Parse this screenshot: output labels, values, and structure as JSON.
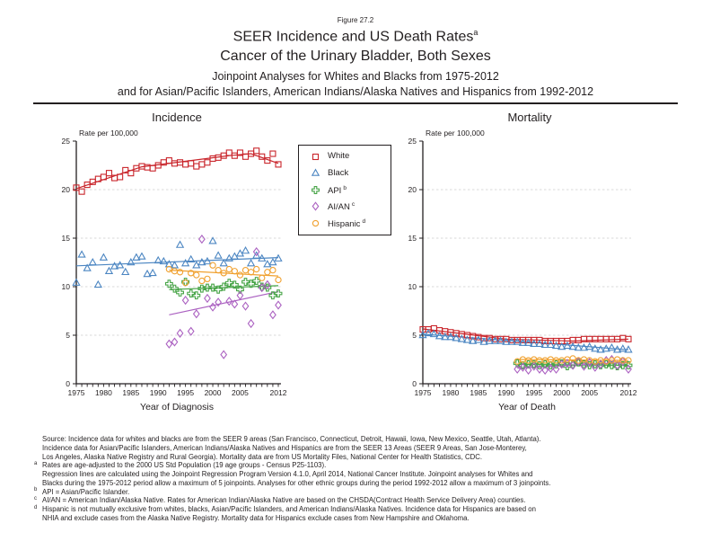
{
  "figure": {
    "label": "Figure 27.2",
    "title_line1": "SEER Incidence and US Death Rates",
    "title_sup": "a",
    "title_line2": "Cancer of the Urinary Bladder, Both Sexes",
    "title_line3": "Joinpoint Analyses for Whites and Blacks from 1975-2012",
    "title_line4": "and for Asian/Pacific Islanders, American Indians/Alaska Natives and Hispanics from 1992-2012"
  },
  "legend": {
    "items": [
      {
        "label": "White",
        "sup": "",
        "marker": "square",
        "color": "#c9252b"
      },
      {
        "label": "Black",
        "sup": "",
        "marker": "triangle",
        "color": "#4c86c2"
      },
      {
        "label": "API",
        "sup": "b",
        "marker": "plus",
        "color": "#47a447"
      },
      {
        "label": "AI/AN",
        "sup": "c",
        "marker": "diamond",
        "color": "#ab61c1"
      },
      {
        "label": "Hispanic",
        "sup": "d",
        "marker": "circle",
        "color": "#f0a130"
      }
    ]
  },
  "chart_data": [
    {
      "type": "scatter",
      "title": "Incidence",
      "ylabel": "Rate per 100,000",
      "xlabel": "Year of Diagnosis",
      "ylim": [
        0,
        25
      ],
      "yticks": [
        0,
        5,
        10,
        15,
        20,
        25
      ],
      "xlim": [
        1975,
        2012
      ],
      "xtick_labels": [
        1975,
        1980,
        1985,
        1990,
        1995,
        2000,
        2005,
        2012
      ],
      "grid": "horizontal-dashed",
      "series": [
        {
          "name": "White",
          "marker": "square",
          "color": "#c9252b",
          "start_year": 1975,
          "values": [
            20.2,
            19.8,
            20.5,
            20.8,
            21.1,
            21.3,
            21.7,
            21.2,
            21.3,
            22.0,
            21.7,
            22.2,
            22.4,
            22.3,
            22.2,
            22.5,
            22.8,
            23.0,
            22.7,
            22.8,
            22.6,
            22.7,
            22.4,
            22.6,
            22.8,
            23.2,
            23.3,
            23.5,
            23.8,
            23.5,
            23.8,
            23.4,
            23.7,
            24.0,
            23.4,
            23.0,
            23.7,
            22.6
          ],
          "trend": [
            [
              1975,
              20.1
            ],
            [
              1987,
              22.35
            ],
            [
              2003,
              23.5
            ],
            [
              2007,
              23.7
            ],
            [
              2012,
              22.7
            ]
          ]
        },
        {
          "name": "Black",
          "marker": "triangle",
          "color": "#4c86c2",
          "start_year": 1975,
          "values": [
            10.4,
            13.3,
            11.9,
            12.5,
            10.2,
            13.0,
            11.6,
            12.1,
            12.2,
            11.5,
            12.5,
            13.0,
            13.1,
            11.3,
            11.4,
            12.7,
            12.6,
            12.3,
            12.2,
            14.3,
            12.4,
            12.8,
            12.2,
            12.5,
            12.6,
            14.7,
            13.2,
            12.4,
            12.9,
            13.1,
            13.4,
            13.7,
            12.4,
            13.2,
            12.9,
            12.3,
            12.5,
            12.9
          ],
          "trend": [
            [
              1975,
              12.15
            ],
            [
              2012,
              13.0
            ]
          ]
        },
        {
          "name": "API",
          "marker": "plus",
          "color": "#47a447",
          "start_year": 1992,
          "values": [
            10.3,
            9.8,
            9.4,
            10.5,
            9.3,
            9.1,
            9.8,
            9.9,
            9.9,
            9.7,
            10.0,
            10.4,
            10.2,
            9.7,
            10.5,
            10.3,
            10.6,
            10.0,
            9.9,
            9.1,
            9.3
          ],
          "trend": [
            [
              1992,
              9.7
            ],
            [
              2012,
              10.1
            ]
          ]
        },
        {
          "name": "AI/AN",
          "marker": "diamond",
          "color": "#ab61c1",
          "start_year": 1992,
          "values": [
            4.1,
            4.3,
            5.2,
            8.6,
            5.4,
            7.2,
            14.9,
            8.8,
            7.9,
            8.4,
            3.0,
            8.5,
            8.2,
            9.1,
            8.0,
            6.2,
            13.6,
            9.9,
            10.2,
            7.1,
            8.1
          ],
          "trend": [
            [
              1992,
              7.1
            ],
            [
              2012,
              9.5
            ]
          ]
        },
        {
          "name": "Hispanic",
          "marker": "circle",
          "color": "#f0a130",
          "start_year": 1992,
          "values": [
            11.8,
            11.6,
            11.5,
            10.4,
            11.4,
            11.2,
            10.6,
            10.8,
            12.2,
            11.7,
            11.4,
            11.8,
            11.6,
            11.2,
            11.7,
            11.5,
            11.8,
            10.9,
            11.5,
            11.7,
            10.7
          ],
          "trend": [
            [
              1992,
              11.7
            ],
            [
              2012,
              11.1
            ]
          ]
        }
      ]
    },
    {
      "type": "scatter",
      "title": "Mortality",
      "ylabel": "Rate per 100,000",
      "xlabel": "Year of Death",
      "ylim": [
        0,
        25
      ],
      "yticks": [
        0,
        5,
        10,
        15,
        20,
        25
      ],
      "xlim": [
        1975,
        2012
      ],
      "xtick_labels": [
        1975,
        1980,
        1985,
        1990,
        1995,
        2000,
        2005,
        2012
      ],
      "grid": "horizontal-dashed",
      "series": [
        {
          "name": "White",
          "marker": "square",
          "color": "#c9252b",
          "start_year": 1975,
          "values": [
            5.6,
            5.6,
            5.7,
            5.5,
            5.4,
            5.3,
            5.2,
            5.1,
            5.0,
            4.9,
            4.8,
            4.7,
            4.7,
            4.6,
            4.6,
            4.6,
            4.5,
            4.5,
            4.5,
            4.5,
            4.5,
            4.5,
            4.4,
            4.4,
            4.4,
            4.4,
            4.4,
            4.5,
            4.5,
            4.6,
            4.6,
            4.6,
            4.6,
            4.6,
            4.6,
            4.6,
            4.7,
            4.6
          ],
          "trend": [
            [
              1975,
              5.65
            ],
            [
              1990,
              4.6
            ],
            [
              2002,
              4.4
            ],
            [
              2012,
              4.6
            ]
          ]
        },
        {
          "name": "Black",
          "marker": "triangle",
          "color": "#4c86c2",
          "start_year": 1975,
          "values": [
            5.0,
            5.2,
            5.1,
            4.9,
            4.8,
            4.8,
            4.7,
            4.6,
            4.5,
            4.4,
            4.5,
            4.3,
            4.4,
            4.4,
            4.4,
            4.3,
            4.3,
            4.3,
            4.2,
            4.2,
            4.1,
            4.1,
            4.0,
            4.0,
            3.9,
            3.8,
            3.9,
            3.8,
            3.7,
            3.7,
            3.8,
            3.6,
            3.5,
            3.6,
            3.7,
            3.5,
            3.6,
            3.5
          ],
          "trend": [
            [
              1975,
              5.1
            ],
            [
              1992,
              4.4
            ],
            [
              2012,
              3.5
            ]
          ]
        },
        {
          "name": "API",
          "marker": "plus",
          "color": "#47a447",
          "start_year": 1992,
          "values": [
            2.1,
            1.9,
            2.0,
            2.0,
            1.9,
            2.0,
            1.9,
            2.0,
            2.1,
            1.8,
            2.0,
            2.2,
            2.0,
            1.9,
            2.0,
            1.9,
            2.0,
            1.9,
            1.8,
            1.9,
            1.9
          ],
          "trend": [
            [
              1992,
              2.0
            ],
            [
              2012,
              1.9
            ]
          ]
        },
        {
          "name": "AI/AN",
          "marker": "diamond",
          "color": "#ab61c1",
          "start_year": 1992,
          "values": [
            1.5,
            1.7,
            1.4,
            1.8,
            1.5,
            1.4,
            1.6,
            1.5,
            2.0,
            2.1,
            1.9,
            2.3,
            1.8,
            2.2,
            1.7,
            2.0,
            2.4,
            2.5,
            1.9,
            2.3,
            1.5
          ],
          "trend": [
            [
              1992,
              1.6
            ],
            [
              2012,
              2.2
            ]
          ]
        },
        {
          "name": "Hispanic",
          "marker": "circle",
          "color": "#f0a130",
          "start_year": 1992,
          "values": [
            2.3,
            2.5,
            2.4,
            2.5,
            2.4,
            2.4,
            2.5,
            2.4,
            2.4,
            2.5,
            2.6,
            2.4,
            2.5,
            2.4,
            2.3,
            2.4,
            2.3,
            2.4,
            2.5,
            2.4,
            2.4
          ],
          "trend": [
            [
              1992,
              2.5
            ],
            [
              2012,
              2.4
            ]
          ]
        }
      ]
    }
  ],
  "footnotes": [
    {
      "sup": "",
      "text": "Source:  Incidence data for whites and blacks are from the SEER 9 areas (San Francisco, Connecticut, Detroit, Hawaii, Iowa, New Mexico, Seattle, Utah, Atlanta)."
    },
    {
      "sup": "",
      "text": "Incidence data for Asian/Pacific Islanders, American Indians/Alaska Natives and Hispanics are from the SEER 13 Areas (SEER 9 Areas, San Jose-Monterey,"
    },
    {
      "sup": "",
      "text": "Los Angeles, Alaska Native Registry and Rural Georgia).  Mortality data are from US Mortality Files, National Center for Health Statistics, CDC."
    },
    {
      "sup": "a",
      "text": "Rates are age-adjusted to the 2000 US Std Population (19 age groups - Census P25-1103)."
    },
    {
      "sup": "",
      "text": "Regression lines are calculated using the Joinpoint Regression Program Version 4.1.0, April 2014, National Cancer Institute.  Joinpoint analyses for Whites and"
    },
    {
      "sup": "",
      "text": "Blacks during the 1975-2012 period allow a maximum of 5 joinpoints. Analyses for other ethnic groups during the period 1992-2012 allow a maximum of 3 joinpoints."
    },
    {
      "sup": "b",
      "text": "API = Asian/Pacific Islander."
    },
    {
      "sup": "c",
      "text": "AI/AN = American Indian/Alaska Native.  Rates for American Indian/Alaska Native are based on the CHSDA(Contract Health Service Delivery Area) counties."
    },
    {
      "sup": "d",
      "text": "Hispanic is not mutually exclusive from whites, blacks, Asian/Pacific Islanders, and American Indians/Alaska Natives.  Incidence data for Hispanics are based on"
    },
    {
      "sup": "",
      "text": "NHIA and exclude cases from the Alaska Native Registry.  Mortality data for Hispanics exclude cases from New Hampshire and Oklahoma."
    }
  ],
  "colors": {
    "text": "#231f20",
    "gridline": "#d9d9d9",
    "white_series": "#c9252b",
    "black_series": "#4c86c2",
    "api_series": "#47a447",
    "aian_series": "#ab61c1",
    "hispanic_series": "#f0a130"
  }
}
